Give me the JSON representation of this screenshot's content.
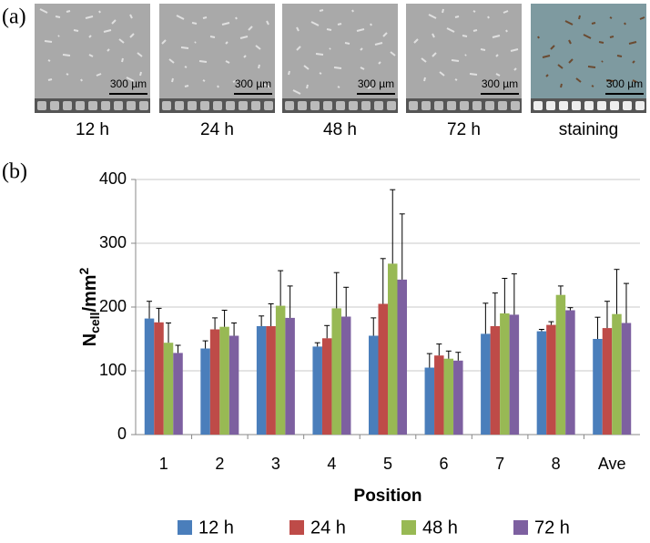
{
  "panel_a": {
    "label": "(a)",
    "images": [
      {
        "caption": "12 h",
        "scale_bar": "300 µm"
      },
      {
        "caption": "24 h",
        "scale_bar": "300 µm"
      },
      {
        "caption": "48 h",
        "scale_bar": "300 µm"
      },
      {
        "caption": "72 h",
        "scale_bar": "300 µm"
      },
      {
        "caption": "staining",
        "scale_bar": "300 µm"
      }
    ]
  },
  "panel_b_label": "(b)",
  "chart_data": {
    "type": "bar",
    "xlabel": "Position",
    "ylabel": {
      "base": "N",
      "sub": "cell",
      "mid": "/mm",
      "sup": "2"
    },
    "categories": [
      "1",
      "2",
      "3",
      "4",
      "5",
      "6",
      "7",
      "8",
      "Ave"
    ],
    "series": [
      {
        "name": "12 h",
        "color": "#4a7ebb",
        "values": [
          182,
          135,
          170,
          138,
          155,
          105,
          158,
          162,
          150
        ],
        "errors": [
          27,
          12,
          16,
          6,
          28,
          22,
          48,
          3,
          34
        ]
      },
      {
        "name": "24 h",
        "color": "#be4b48",
        "values": [
          176,
          165,
          170,
          151,
          205,
          124,
          170,
          172,
          167
        ],
        "errors": [
          22,
          18,
          35,
          20,
          71,
          18,
          52,
          5,
          42
        ]
      },
      {
        "name": "48 h",
        "color": "#98b954",
        "values": [
          144,
          169,
          202,
          198,
          268,
          119,
          190,
          219,
          189
        ],
        "errors": [
          31,
          26,
          55,
          56,
          116,
          12,
          55,
          14,
          70
        ]
      },
      {
        "name": "72 h",
        "color": "#7d60a0",
        "values": [
          128,
          155,
          183,
          185,
          243,
          116,
          188,
          195,
          175
        ],
        "errors": [
          12,
          20,
          50,
          46,
          103,
          13,
          64,
          4,
          62
        ]
      }
    ],
    "ylim": [
      0,
      400
    ],
    "yticks": [
      0,
      100,
      200,
      300,
      400
    ],
    "grid": true,
    "legend": "bottom"
  }
}
